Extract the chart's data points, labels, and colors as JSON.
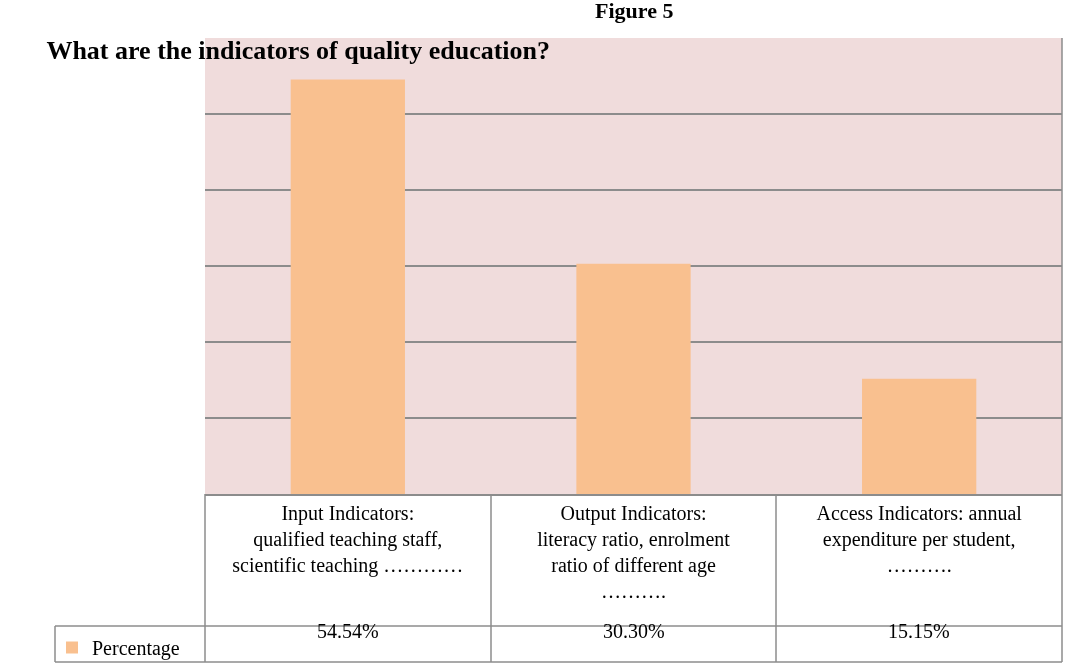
{
  "chart_data": {
    "type": "bar",
    "title": "What are the indicators of quality education?",
    "annotations": [
      "Figure 5"
    ],
    "categories": [
      "Input Indicators: qualified teaching staff, scientific teaching …………",
      "Output Indicators: literacy ratio, enrolment ratio of different age ……….",
      "Access Indicators: annual expenditure per student, ………."
    ],
    "series": [
      {
        "name": "Percentage",
        "color": "#f9c08f",
        "values": [
          54.54,
          30.3,
          15.15
        ],
        "value_labels": [
          "54.54%",
          "30.30%",
          "15.15%"
        ]
      }
    ],
    "ylim": [
      0,
      60
    ],
    "yticks": [
      {
        "value": 0,
        "label": null
      },
      {
        "value": 10,
        "label": null
      },
      {
        "value": 20,
        "label": null
      },
      {
        "value": 30,
        "label": null
      },
      {
        "value": 40,
        "label": null
      },
      {
        "value": 50,
        "label": null
      },
      {
        "value": 60,
        "label": null
      }
    ],
    "grid": "y",
    "legend": "bottom left",
    "tick_labels": "x"
  }
}
